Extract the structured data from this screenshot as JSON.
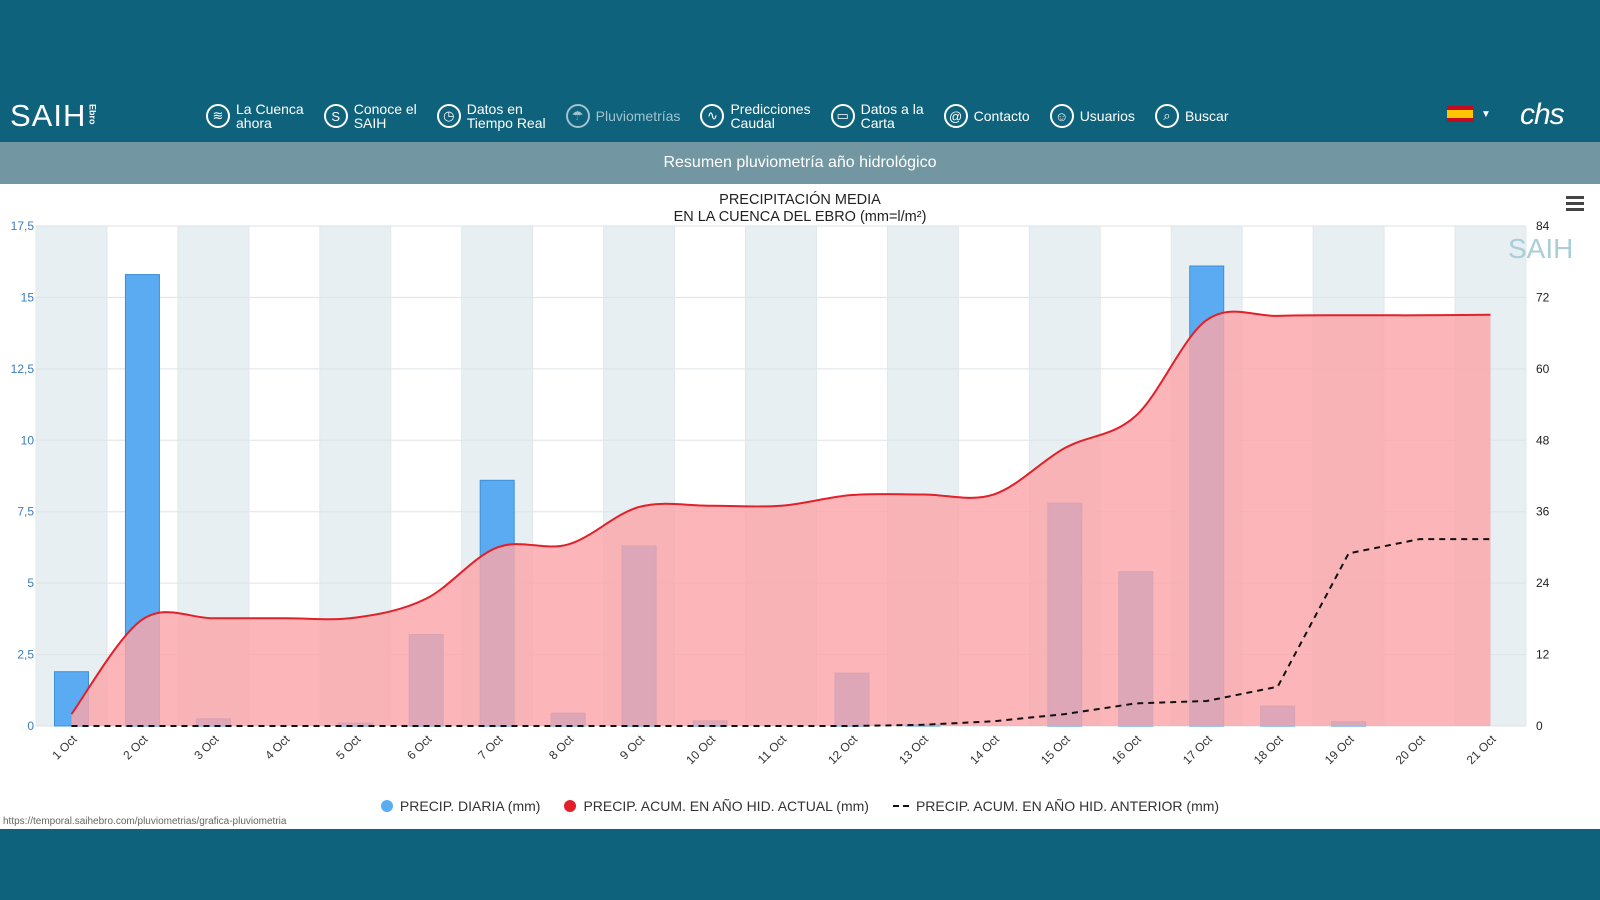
{
  "brand": {
    "word": "SAIH",
    "sub": "Ebro"
  },
  "nav": [
    {
      "id": "la-cuenca",
      "icon": "waves-icon",
      "glyph": "≋",
      "label": "La Cuenca\nahora"
    },
    {
      "id": "conoce",
      "icon": "info-s-icon",
      "glyph": "S",
      "label": "Conoce el\nSAIH"
    },
    {
      "id": "datos-tiempo-real",
      "icon": "clock-icon",
      "glyph": "◷",
      "label": "Datos en\nTiempo Real"
    },
    {
      "id": "pluviometrias",
      "icon": "umbrella-icon",
      "glyph": "☂",
      "label": "Pluviometrías",
      "active": true
    },
    {
      "id": "predicciones",
      "icon": "chart-line-icon",
      "glyph": "∿",
      "label": "Predicciones\nCaudal"
    },
    {
      "id": "datos-carta",
      "icon": "folder-icon",
      "glyph": "▭",
      "label": "Datos a la\nCarta"
    },
    {
      "id": "contacto",
      "icon": "at-icon",
      "glyph": "@",
      "label": "Contacto"
    },
    {
      "id": "usuarios",
      "icon": "user-icon",
      "glyph": "☺",
      "label": "Usuarios"
    },
    {
      "id": "buscar",
      "icon": "search-icon",
      "glyph": "⌕",
      "label": "Buscar"
    }
  ],
  "lang": {
    "icon": "spain-flag-icon"
  },
  "logo_right": "chs",
  "subheader": "Resumen pluviometría año hidrológico",
  "colors": {
    "bar": "#5aabf1",
    "acum_actual": "#e2202a",
    "area_fill": "#fba6a9",
    "acum_anterior": "#111111",
    "band": "#e7eff2"
  },
  "chart_data": {
    "type": "bar",
    "title": "PRECIPITACIÓN MEDIA",
    "subtitle": "EN LA CUENCA DEL EBRO (mm=l/m²)",
    "watermark": "SAIH",
    "categories": [
      "1 Oct",
      "2 Oct",
      "3 Oct",
      "4 Oct",
      "5 Oct",
      "6 Oct",
      "7 Oct",
      "8 Oct",
      "9 Oct",
      "10 Oct",
      "11 Oct",
      "12 Oct",
      "13 Oct",
      "14 Oct",
      "15 Oct",
      "16 Oct",
      "17 Oct",
      "18 Oct",
      "19 Oct",
      "20 Oct",
      "21 Oct"
    ],
    "y_left": {
      "min": 0,
      "max": 17.5,
      "ticks": [
        "0",
        "2,5",
        "5",
        "7,5",
        "10",
        "12,5",
        "15",
        "17,5"
      ]
    },
    "y_right": {
      "min": 0,
      "max": 84,
      "ticks": [
        "0",
        "12",
        "24",
        "36",
        "48",
        "60",
        "72",
        "84"
      ]
    },
    "series": [
      {
        "name": "PRECIP. DIARIA (mm)",
        "kind": "bar",
        "axis": "left",
        "values": [
          1.9,
          15.8,
          0.25,
          0,
          0.1,
          3.2,
          8.6,
          0.45,
          6.3,
          0.18,
          0,
          1.85,
          0.05,
          0,
          7.8,
          5.4,
          16.1,
          0.7,
          0.15,
          0,
          0
        ]
      },
      {
        "name": "PRECIP. ACUM. EN AÑO HID. ACTUAL (mm)",
        "kind": "area",
        "axis": "right",
        "values": [
          2.0,
          17.9,
          18.1,
          18.1,
          18.2,
          21.4,
          30.0,
          30.5,
          36.8,
          37.0,
          37.0,
          38.8,
          38.9,
          38.9,
          46.7,
          52.1,
          68.2,
          68.9,
          69.0,
          69.0,
          69.1
        ]
      },
      {
        "name": "PRECIP. ACUM. EN AÑO HID. ANTERIOR (mm)",
        "kind": "dashed-line",
        "axis": "right",
        "values": [
          0,
          0,
          0,
          0,
          0,
          0,
          0,
          0,
          0,
          0,
          0,
          0,
          0.2,
          0.8,
          2.0,
          3.8,
          4.2,
          6.6,
          29.0,
          31.4,
          31.4
        ]
      }
    ],
    "legend_position": "bottom",
    "grid": true
  },
  "url": "https://temporal.saihebro.com/pluviometrias/grafica-pluviometria"
}
